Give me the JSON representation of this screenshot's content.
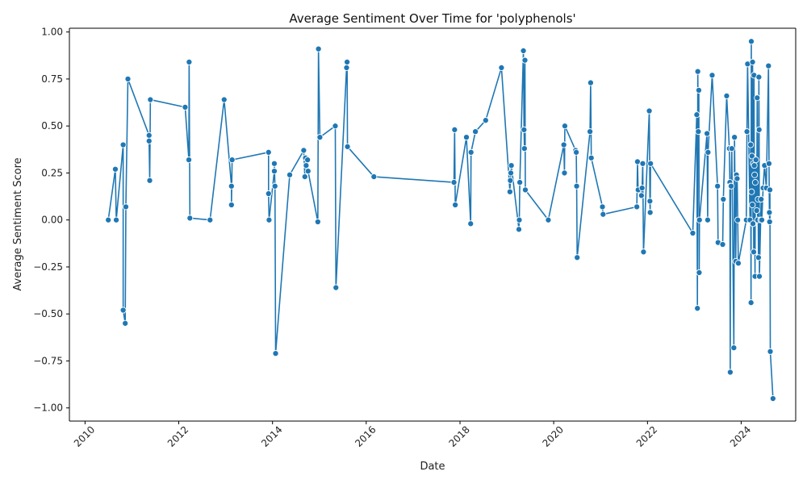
{
  "chart_data": {
    "type": "line",
    "title": "Average Sentiment Over Time for 'polyphenols'",
    "xlabel": "Date",
    "ylabel": "Average Sentiment Score",
    "x_ticks": [
      "2010",
      "2012",
      "2014",
      "2016",
      "2018",
      "2020",
      "2022",
      "2024"
    ],
    "y_ticks": [
      "−1.00",
      "−0.75",
      "−0.50",
      "−0.25",
      "0.00",
      "0.25",
      "0.50",
      "0.75",
      "1.00"
    ],
    "xlim": [
      "2009-09-01",
      "2025-03-01"
    ],
    "ylim": [
      -1.07,
      1.02
    ],
    "grid": false,
    "legend": "none",
    "color": "#1f77b4",
    "series": [
      {
        "points": [
          [
            "2010-07-01",
            0.0
          ],
          [
            "2010-08-25",
            0.27
          ],
          [
            "2010-09-01",
            0.0
          ],
          [
            "2010-10-25",
            0.4
          ],
          [
            "2010-10-25",
            -0.48
          ],
          [
            "2010-11-10",
            -0.55
          ],
          [
            "2010-11-15",
            0.07
          ],
          [
            "2010-12-01",
            0.75
          ],
          [
            "2011-05-15",
            0.45
          ],
          [
            "2011-05-15",
            0.42
          ],
          [
            "2011-05-20",
            0.21
          ],
          [
            "2011-05-25",
            0.64
          ],
          [
            "2012-02-20",
            0.6
          ],
          [
            "2012-03-20",
            0.32
          ],
          [
            "2012-03-22",
            0.84
          ],
          [
            "2012-03-28",
            0.01
          ],
          [
            "2012-09-01",
            0.0
          ],
          [
            "2012-12-20",
            0.64
          ],
          [
            "2013-02-15",
            0.18
          ],
          [
            "2013-02-15",
            0.08
          ],
          [
            "2013-02-20",
            0.32
          ],
          [
            "2013-12-01",
            0.36
          ],
          [
            "2013-12-01",
            0.14
          ],
          [
            "2013-12-05",
            0.0
          ],
          [
            "2014-01-15",
            0.26
          ],
          [
            "2014-01-15",
            0.3
          ],
          [
            "2014-01-20",
            0.18
          ],
          [
            "2014-01-25",
            -0.71
          ],
          [
            "2014-05-15",
            0.24
          ],
          [
            "2014-09-01",
            0.37
          ],
          [
            "2014-09-10",
            0.23
          ],
          [
            "2014-09-15",
            0.33
          ],
          [
            "2014-09-20",
            0.29
          ],
          [
            "2014-10-01",
            0.32
          ],
          [
            "2014-10-05",
            0.26
          ],
          [
            "2014-12-20",
            -0.01
          ],
          [
            "2014-12-25",
            0.91
          ],
          [
            "2015-01-05",
            0.44
          ],
          [
            "2015-05-05",
            0.5
          ],
          [
            "2015-05-10",
            -0.36
          ],
          [
            "2015-08-01",
            0.81
          ],
          [
            "2015-08-05",
            0.84
          ],
          [
            "2015-08-08",
            0.39
          ],
          [
            "2016-03-01",
            0.23
          ],
          [
            "2017-11-15",
            0.2
          ],
          [
            "2017-11-20",
            0.48
          ],
          [
            "2017-11-25",
            0.08
          ],
          [
            "2018-02-20",
            0.44
          ],
          [
            "2018-03-25",
            -0.02
          ],
          [
            "2018-03-28",
            0.36
          ],
          [
            "2018-05-01",
            0.47
          ],
          [
            "2018-07-20",
            0.53
          ],
          [
            "2018-11-20",
            0.81
          ],
          [
            "2019-01-25",
            0.15
          ],
          [
            "2019-01-28",
            0.21
          ],
          [
            "2019-02-01",
            0.25
          ],
          [
            "2019-02-05",
            0.29
          ],
          [
            "2019-04-05",
            -0.05
          ],
          [
            "2019-04-08",
            0.0
          ],
          [
            "2019-04-12",
            0.2
          ],
          [
            "2019-05-10",
            0.9
          ],
          [
            "2019-05-15",
            0.48
          ],
          [
            "2019-05-18",
            0.38
          ],
          [
            "2019-05-22",
            0.85
          ],
          [
            "2019-05-25",
            0.16
          ],
          [
            "2019-11-20",
            0.0
          ],
          [
            "2020-03-20",
            0.4
          ],
          [
            "2020-03-25",
            0.25
          ],
          [
            "2020-03-28",
            0.5
          ],
          [
            "2020-06-20",
            0.37
          ],
          [
            "2020-06-25",
            0.36
          ],
          [
            "2020-06-28",
            0.18
          ],
          [
            "2020-07-02",
            -0.2
          ],
          [
            "2020-10-10",
            0.47
          ],
          [
            "2020-10-15",
            0.73
          ],
          [
            "2020-10-20",
            0.33
          ],
          [
            "2021-01-15",
            0.07
          ],
          [
            "2021-01-20",
            0.03
          ],
          [
            "2021-10-10",
            0.07
          ],
          [
            "2021-10-15",
            0.31
          ],
          [
            "2021-10-20",
            0.16
          ],
          [
            "2021-11-15",
            0.13
          ],
          [
            "2021-11-20",
            0.17
          ],
          [
            "2021-11-25",
            0.3
          ],
          [
            "2021-12-01",
            -0.17
          ],
          [
            "2022-01-15",
            0.58
          ],
          [
            "2022-01-20",
            0.1
          ],
          [
            "2022-01-22",
            0.04
          ],
          [
            "2022-01-25",
            0.3
          ],
          [
            "2022-12-20",
            -0.07
          ],
          [
            "2023-01-20",
            0.56
          ],
          [
            "2023-01-25",
            -0.47
          ],
          [
            "2023-01-28",
            0.79
          ],
          [
            "2023-02-01",
            0.47
          ],
          [
            "2023-02-05",
            0.69
          ],
          [
            "2023-02-08",
            -0.28
          ],
          [
            "2023-02-10",
            0.0
          ],
          [
            "2023-04-10",
            0.46
          ],
          [
            "2023-04-15",
            0.0
          ],
          [
            "2023-04-18",
            0.36
          ],
          [
            "2023-05-20",
            0.77
          ],
          [
            "2023-07-01",
            0.18
          ],
          [
            "2023-07-05",
            -0.12
          ],
          [
            "2023-08-10",
            -0.13
          ],
          [
            "2023-08-15",
            0.11
          ],
          [
            "2023-09-10",
            0.66
          ],
          [
            "2023-10-01",
            0.38
          ],
          [
            "2023-10-05",
            0.2
          ],
          [
            "2023-10-08",
            -0.81
          ],
          [
            "2023-10-10",
            0.18
          ],
          [
            "2023-10-15",
            0.18
          ],
          [
            "2023-10-20",
            0.38
          ],
          [
            "2023-11-05",
            -0.68
          ],
          [
            "2023-11-10",
            0.44
          ],
          [
            "2023-11-20",
            -0.22
          ],
          [
            "2023-11-25",
            0.24
          ],
          [
            "2023-12-01",
            0.22
          ],
          [
            "2023-12-05",
            0.0
          ],
          [
            "2023-12-10",
            -0.23
          ],
          [
            "2024-02-10",
            0.0
          ],
          [
            "2024-02-15",
            0.47
          ],
          [
            "2024-02-20",
            0.83
          ],
          [
            "2024-03-10",
            0.0
          ],
          [
            "2024-03-15",
            0.4
          ],
          [
            "2024-03-18",
            -0.44
          ],
          [
            "2024-03-20",
            0.95
          ],
          [
            "2024-03-22",
            0.15
          ],
          [
            "2024-03-25",
            0.34
          ],
          [
            "2024-03-28",
            0.08
          ],
          [
            "2024-03-30",
            0.84
          ],
          [
            "2024-04-02",
            -0.02
          ],
          [
            "2024-04-05",
            0.3
          ],
          [
            "2024-04-08",
            -0.17
          ],
          [
            "2024-04-10",
            0.77
          ],
          [
            "2024-04-12",
            0.29
          ],
          [
            "2024-04-15",
            0.24
          ],
          [
            "2024-04-18",
            -0.3
          ],
          [
            "2024-04-20",
            0.2
          ],
          [
            "2024-04-25",
            0.32
          ],
          [
            "2024-05-01",
            0.05
          ],
          [
            "2024-05-05",
            0.65
          ],
          [
            "2024-05-08",
            0.0
          ],
          [
            "2024-05-12",
            0.11
          ],
          [
            "2024-05-15",
            -0.2
          ],
          [
            "2024-05-18",
            0.76
          ],
          [
            "2024-05-20",
            0.48
          ],
          [
            "2024-05-22",
            -0.3
          ],
          [
            "2024-06-01",
            0.0
          ],
          [
            "2024-06-05",
            0.11
          ],
          [
            "2024-06-10",
            0.0
          ],
          [
            "2024-06-20",
            0.17
          ],
          [
            "2024-07-01",
            0.29
          ],
          [
            "2024-07-15",
            0.17
          ],
          [
            "2024-08-01",
            0.82
          ],
          [
            "2024-08-05",
            0.3
          ],
          [
            "2024-08-08",
            0.04
          ],
          [
            "2024-08-10",
            -0.01
          ],
          [
            "2024-08-12",
            0.16
          ],
          [
            "2024-08-15",
            -0.7
          ],
          [
            "2024-09-05",
            -0.95
          ]
        ]
      }
    ]
  }
}
